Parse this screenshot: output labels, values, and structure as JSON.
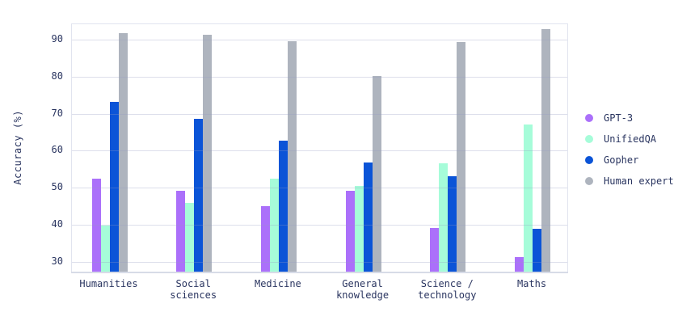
{
  "chart_data": {
    "type": "bar",
    "title": "",
    "xlabel": "",
    "ylabel": "Accuracy (%)",
    "categories": [
      "Humanities",
      "Social sciences",
      "Medicine",
      "General knowledge",
      "Science / technology",
      "Maths"
    ],
    "category_lines": [
      [
        "Humanities"
      ],
      [
        "Social",
        "sciences"
      ],
      [
        "Medicine"
      ],
      [
        "General",
        "knowledge"
      ],
      [
        "Science /",
        "technology"
      ],
      [
        "Maths"
      ]
    ],
    "series": [
      {
        "name": "GPT-3",
        "color": "#ab70fa",
        "values": [
          52.3,
          49.0,
          44.7,
          49.0,
          38.8,
          31.1
        ]
      },
      {
        "name": "UnifiedQA",
        "color": "#a6fcd9",
        "values": [
          39.5,
          45.7,
          52.3,
          50.2,
          56.3,
          66.9
        ]
      },
      {
        "name": "Gopher",
        "color": "#0b54d7",
        "values": [
          73.0,
          68.5,
          62.5,
          56.7,
          52.9,
          38.6
        ]
      },
      {
        "name": "Human expert",
        "color": "#aeb4be",
        "values": [
          91.6,
          91.1,
          89.4,
          80.0,
          89.1,
          92.7
        ]
      }
    ],
    "yticks": [
      30,
      40,
      50,
      60,
      70,
      80,
      90
    ],
    "ylim": [
      27.1,
      94.2
    ],
    "grid": true,
    "legend_position": "middle-right",
    "colors": {
      "text": "#2a3560",
      "gridline": "#dde1ee",
      "axis_line": "#d7dbe7",
      "plot_border": "#e1e4ef",
      "background": "#ffffff"
    }
  }
}
